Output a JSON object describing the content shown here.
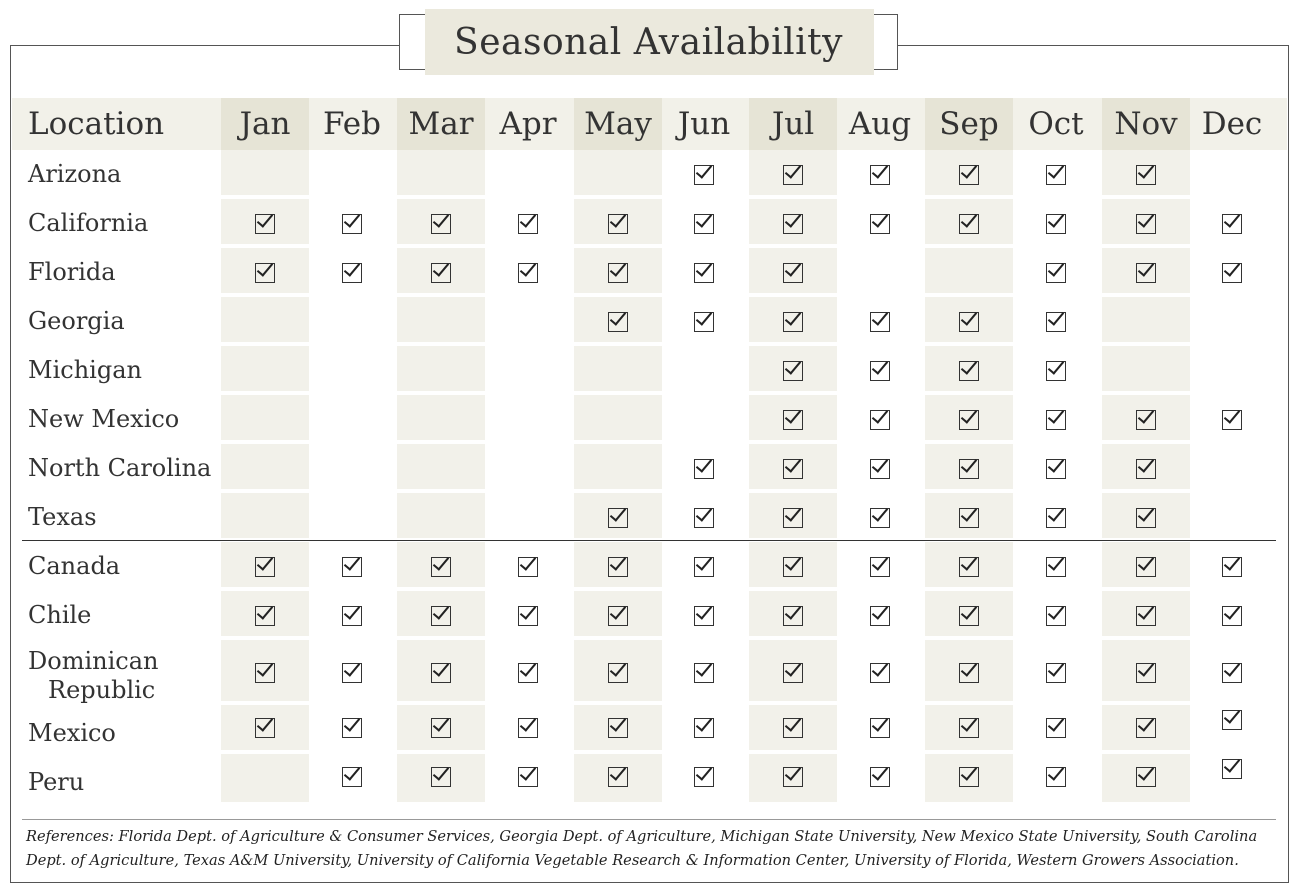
{
  "title": "Seasonal Availability",
  "header": {
    "location": "Location",
    "months": [
      "Jan",
      "Feb",
      "Mar",
      "Apr",
      "May",
      "Jun",
      "Jul",
      "Aug",
      "Sep",
      "Oct",
      "Nov",
      "Dec"
    ]
  },
  "rows": [
    {
      "label": "Arizona",
      "available": [
        0,
        0,
        0,
        0,
        0,
        1,
        1,
        1,
        1,
        1,
        1,
        0
      ]
    },
    {
      "label": "California",
      "available": [
        1,
        1,
        1,
        1,
        1,
        1,
        1,
        1,
        1,
        1,
        1,
        1
      ]
    },
    {
      "label": "Florida",
      "available": [
        1,
        1,
        1,
        1,
        1,
        1,
        1,
        0,
        0,
        1,
        1,
        1
      ]
    },
    {
      "label": "Georgia",
      "available": [
        0,
        0,
        0,
        0,
        1,
        1,
        1,
        1,
        1,
        1,
        0,
        0
      ]
    },
    {
      "label": "Michigan",
      "available": [
        0,
        0,
        0,
        0,
        0,
        0,
        1,
        1,
        1,
        1,
        0,
        0
      ]
    },
    {
      "label": "New Mexico",
      "available": [
        0,
        0,
        0,
        0,
        0,
        0,
        1,
        1,
        1,
        1,
        1,
        1
      ]
    },
    {
      "label": "North Carolina",
      "available": [
        0,
        0,
        0,
        0,
        0,
        1,
        1,
        1,
        1,
        1,
        1,
        0
      ]
    },
    {
      "label": "Texas",
      "available": [
        0,
        0,
        0,
        0,
        1,
        1,
        1,
        1,
        1,
        1,
        1,
        0
      ]
    },
    {
      "label": "Canada",
      "available": [
        1,
        1,
        1,
        1,
        1,
        1,
        1,
        1,
        1,
        1,
        1,
        1
      ]
    },
    {
      "label": "Chile",
      "available": [
        1,
        1,
        1,
        1,
        1,
        1,
        1,
        1,
        1,
        1,
        1,
        1
      ]
    },
    {
      "label_line1": "Dominican",
      "label_line2": "Republic",
      "available": [
        1,
        1,
        1,
        1,
        1,
        1,
        1,
        1,
        1,
        1,
        1,
        1
      ]
    },
    {
      "label": "Mexico",
      "available": [
        1,
        1,
        1,
        1,
        1,
        1,
        1,
        1,
        1,
        1,
        1,
        1
      ]
    },
    {
      "label": "Peru",
      "available": [
        0,
        1,
        1,
        1,
        1,
        1,
        1,
        1,
        1,
        1,
        1,
        1
      ]
    }
  ],
  "references": "References: Florida Dept. of Agriculture & Consumer Services, Georgia Dept. of Agriculture, Michigan State University, New Mexico State University, South Carolina Dept. of Agriculture, Texas A&M University, University of California Vegetable Research & Information Center, University of Florida, Western Growers Association."
}
